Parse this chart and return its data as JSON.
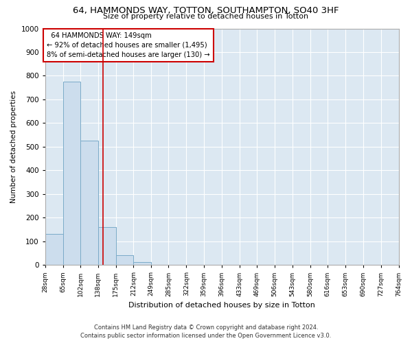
{
  "title": "64, HAMMONDS WAY, TOTTON, SOUTHAMPTON, SO40 3HF",
  "subtitle": "Size of property relative to detached houses in Totton",
  "xlabel": "Distribution of detached houses by size in Totton",
  "ylabel": "Number of detached properties",
  "footer_line1": "Contains HM Land Registry data © Crown copyright and database right 2024.",
  "footer_line2": "Contains public sector information licensed under the Open Government Licence v3.0.",
  "bar_edges": [
    28,
    65,
    102,
    138,
    175,
    212,
    249,
    285,
    322,
    359,
    396,
    433,
    469,
    506,
    543,
    580,
    616,
    653,
    690,
    727,
    764
  ],
  "bar_heights": [
    130,
    775,
    525,
    160,
    40,
    12,
    0,
    0,
    0,
    0,
    0,
    0,
    0,
    0,
    0,
    0,
    0,
    0,
    0,
    0
  ],
  "bar_color": "#ccdded",
  "bar_edge_color": "#7aaac8",
  "property_size": 149,
  "annotation_line1": "  64 HAMMONDS WAY: 149sqm",
  "annotation_line2": "← 92% of detached houses are smaller (1,495)",
  "annotation_line3": "8% of semi-detached houses are larger (130) →",
  "vline_color": "#cc0000",
  "annotation_box_color": "#ffffff",
  "annotation_box_edge": "#cc0000",
  "ylim": [
    0,
    1000
  ],
  "background_color": "#dce8f2"
}
